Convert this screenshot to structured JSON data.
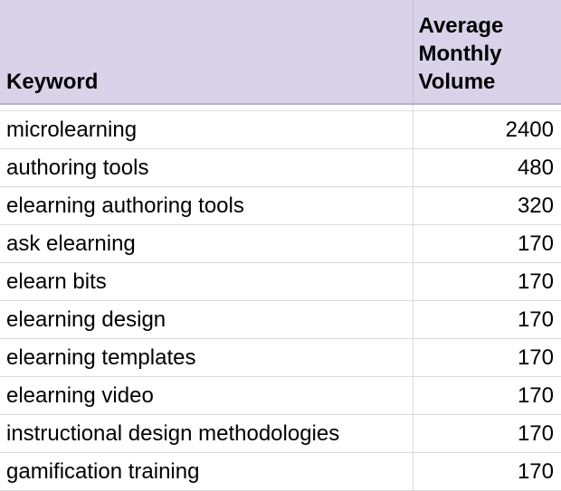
{
  "header": {
    "keyword_label": "Keyword",
    "volume_label_line1": "Average",
    "volume_label_line2": "Monthly",
    "volume_label_line3": "Volume"
  },
  "rows": [
    {
      "keyword": "microlearning",
      "volume": "2400"
    },
    {
      "keyword": "authoring tools",
      "volume": "480"
    },
    {
      "keyword": "elearning authoring tools",
      "volume": "320"
    },
    {
      "keyword": "ask elearning",
      "volume": "170"
    },
    {
      "keyword": "elearn bits",
      "volume": "170"
    },
    {
      "keyword": "elearning design",
      "volume": "170"
    },
    {
      "keyword": "elearning templates",
      "volume": "170"
    },
    {
      "keyword": "elearning video",
      "volume": "170"
    },
    {
      "keyword": "instructional design methodologies",
      "volume": "170"
    },
    {
      "keyword": "gamification training",
      "volume": "170"
    }
  ],
  "colors": {
    "header_background": "#d9d2e9",
    "gridline": "#dadada"
  }
}
